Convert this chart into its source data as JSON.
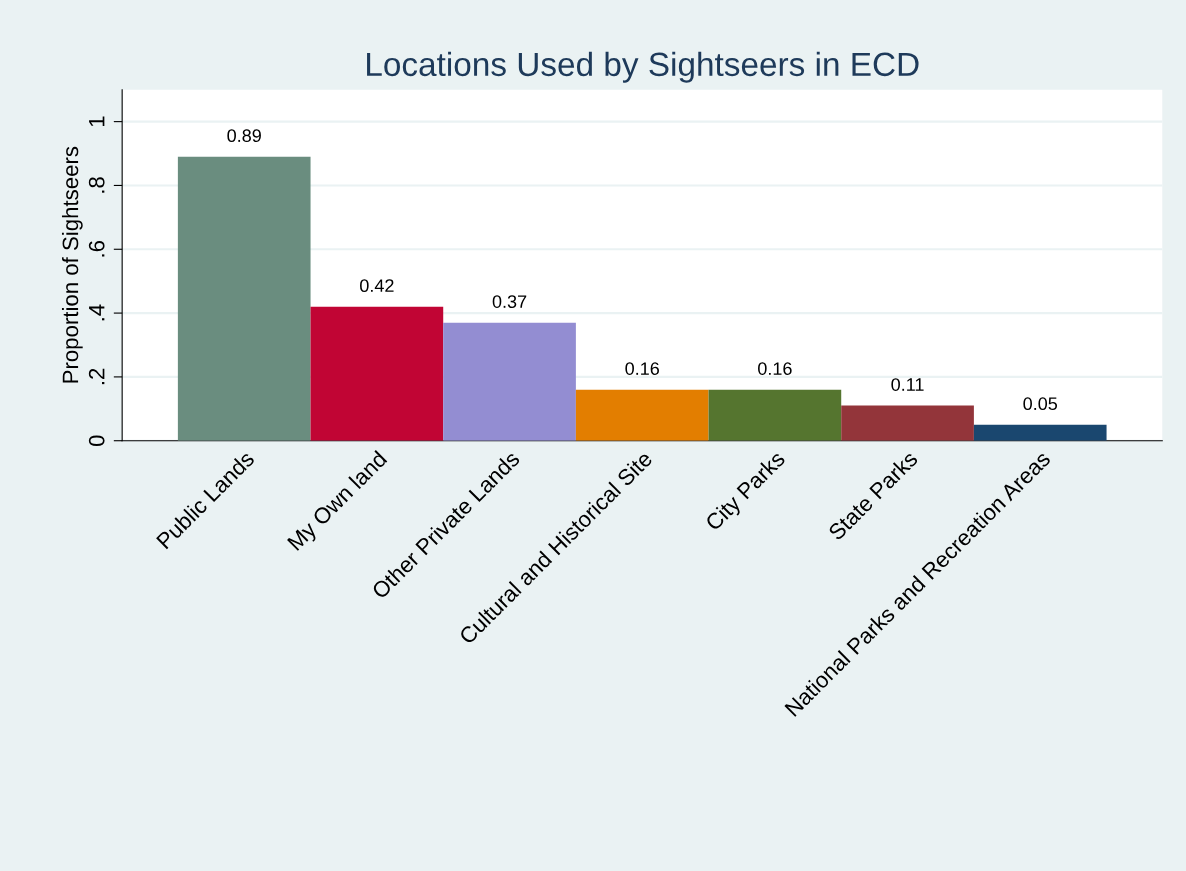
{
  "chart_data": {
    "type": "bar",
    "title": "Locations Used by Sightseers in ECD",
    "ylabel": "Proportion of Sightseers",
    "categories": [
      "Public Lands",
      "My Own land",
      "Other Private Lands",
      "Cultural and Historical Site",
      "City Parks",
      "State Parks",
      "National Parks and Recreation Areas"
    ],
    "values": [
      0.89,
      0.42,
      0.37,
      0.16,
      0.16,
      0.11,
      0.05
    ],
    "colors": [
      "#6a8d7f",
      "#c10534",
      "#938dd2",
      "#e37e00",
      "#55752f",
      "#93353a",
      "#1a476f"
    ],
    "data_labels": true,
    "ylim": [
      0,
      1.1
    ],
    "yticks": [
      0,
      {
        "value": 0.2,
        "label": ".2"
      },
      {
        "value": 0.4,
        "label": ".4"
      },
      {
        "value": 0.6,
        "label": ".6"
      },
      {
        "value": 0.8,
        "label": ".8"
      },
      1
    ],
    "grid": "y",
    "legend": false
  }
}
